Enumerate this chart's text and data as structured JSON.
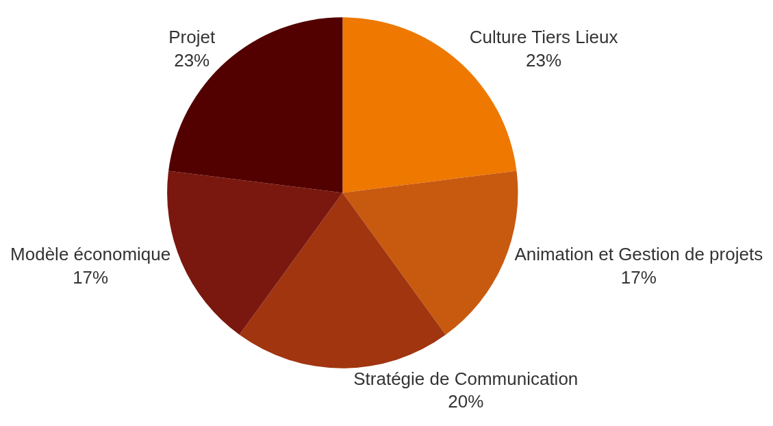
{
  "chart_data": {
    "type": "pie",
    "categories": [
      "Culture Tiers Lieux",
      "Animation et Gestion de projets",
      "Stratégie de Communication",
      "Modèle économique",
      "Projet"
    ],
    "values": [
      23,
      17,
      20,
      17,
      23
    ],
    "value_labels": [
      "23%",
      "17%",
      "20%",
      "17%",
      "23%"
    ],
    "colors": [
      "#ee7800",
      "#c85a10",
      "#a03510",
      "#7a1810",
      "#520000"
    ],
    "legend": false
  }
}
